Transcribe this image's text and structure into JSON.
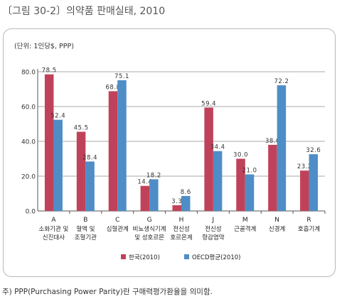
{
  "figure_title": "〔그림 30-2〕의약품 판매실태, 2010",
  "unit_label": "(단위: 1인당$, PPP)",
  "footnote": "주) PPP(Purchasing Power Parity)란 구매력평가환율을 의미함.",
  "colors": {
    "korea": "#c0425a",
    "oecd": "#4f8dc6",
    "grid": "#8c8c8c"
  },
  "chart_data": {
    "type": "bar",
    "categories": [
      {
        "code": "A",
        "label": [
          "소화기관 및",
          "신진대사"
        ]
      },
      {
        "code": "B",
        "label": [
          "혈액 및",
          "조혈기관"
        ]
      },
      {
        "code": "C",
        "label": [
          "심혈관계"
        ]
      },
      {
        "code": "G",
        "label": [
          "비뇨생식기계",
          "및 성호르몬"
        ]
      },
      {
        "code": "H",
        "label": [
          "전신성",
          "호르몬계"
        ]
      },
      {
        "code": "J",
        "label": [
          "전신성",
          "항감염약"
        ]
      },
      {
        "code": "M",
        "label": [
          "근골격계"
        ]
      },
      {
        "code": "N",
        "label": [
          "신경계"
        ]
      },
      {
        "code": "R",
        "label": [
          "호흡기계"
        ]
      }
    ],
    "series": [
      {
        "name": "한국(2010)",
        "color": "#c0425a",
        "values": [
          78.5,
          45.5,
          68.8,
          14.4,
          3.3,
          59.4,
          30.0,
          38.0,
          23.2
        ]
      },
      {
        "name": "OECD평균(2010)",
        "color": "#4f8dc6",
        "values": [
          52.4,
          28.4,
          75.1,
          18.2,
          8.6,
          34.4,
          21.0,
          72.2,
          32.6
        ]
      }
    ],
    "y_ticks": [
      "0.0",
      "20.0",
      "40.0",
      "60.0",
      "80.0"
    ],
    "ylim": [
      0,
      80
    ],
    "grid": true,
    "legend_position": "bottom-center"
  }
}
